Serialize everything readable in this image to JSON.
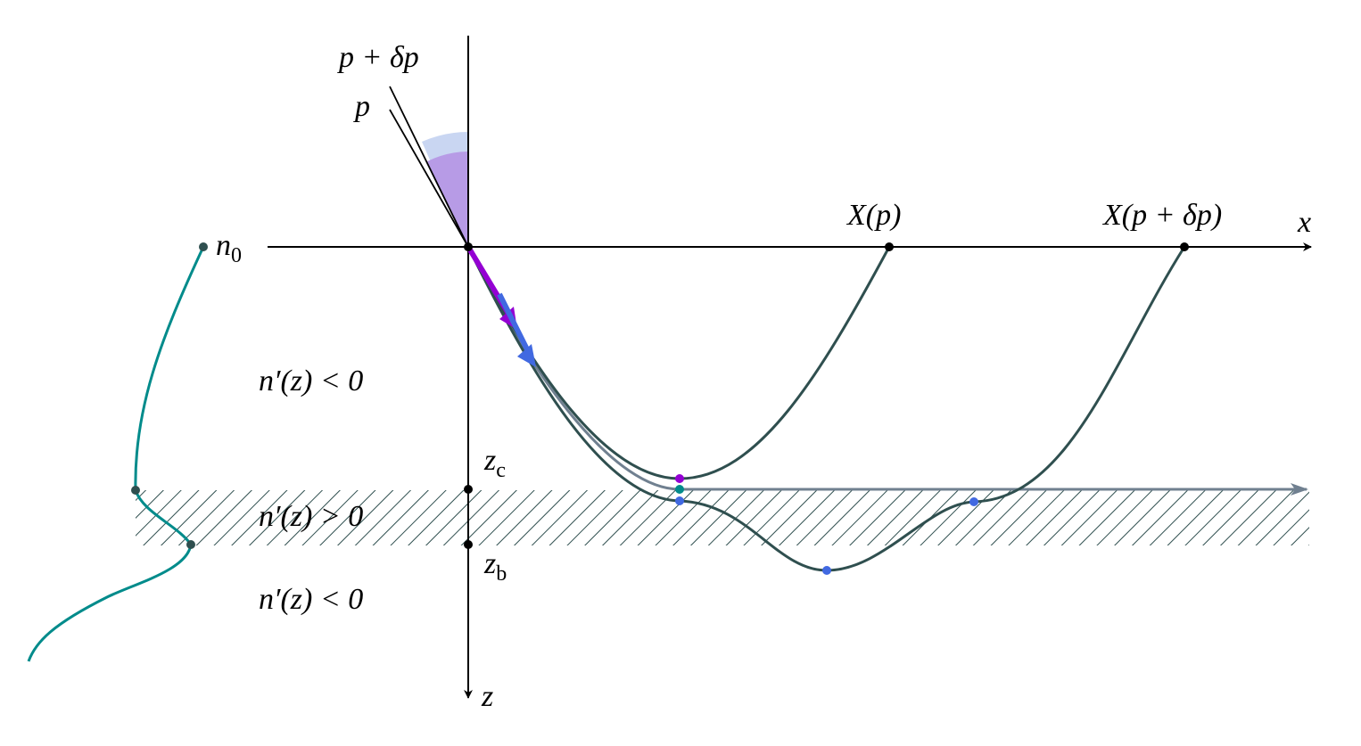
{
  "labels": {
    "p_delta": "p + δp",
    "p": "p",
    "X_p": "X(p)",
    "X_p_delta": "X(p + δp)",
    "x_axis": "x",
    "z_axis": "z",
    "n0": {
      "base": "n",
      "sub": "0"
    },
    "region_top": "n′(z) < 0",
    "region_mid": "n′(z) > 0",
    "region_bottom": "n′(z) < 0",
    "zc": {
      "base": "z",
      "sub": "c"
    },
    "zb": {
      "base": "z",
      "sub": "b"
    }
  }
}
